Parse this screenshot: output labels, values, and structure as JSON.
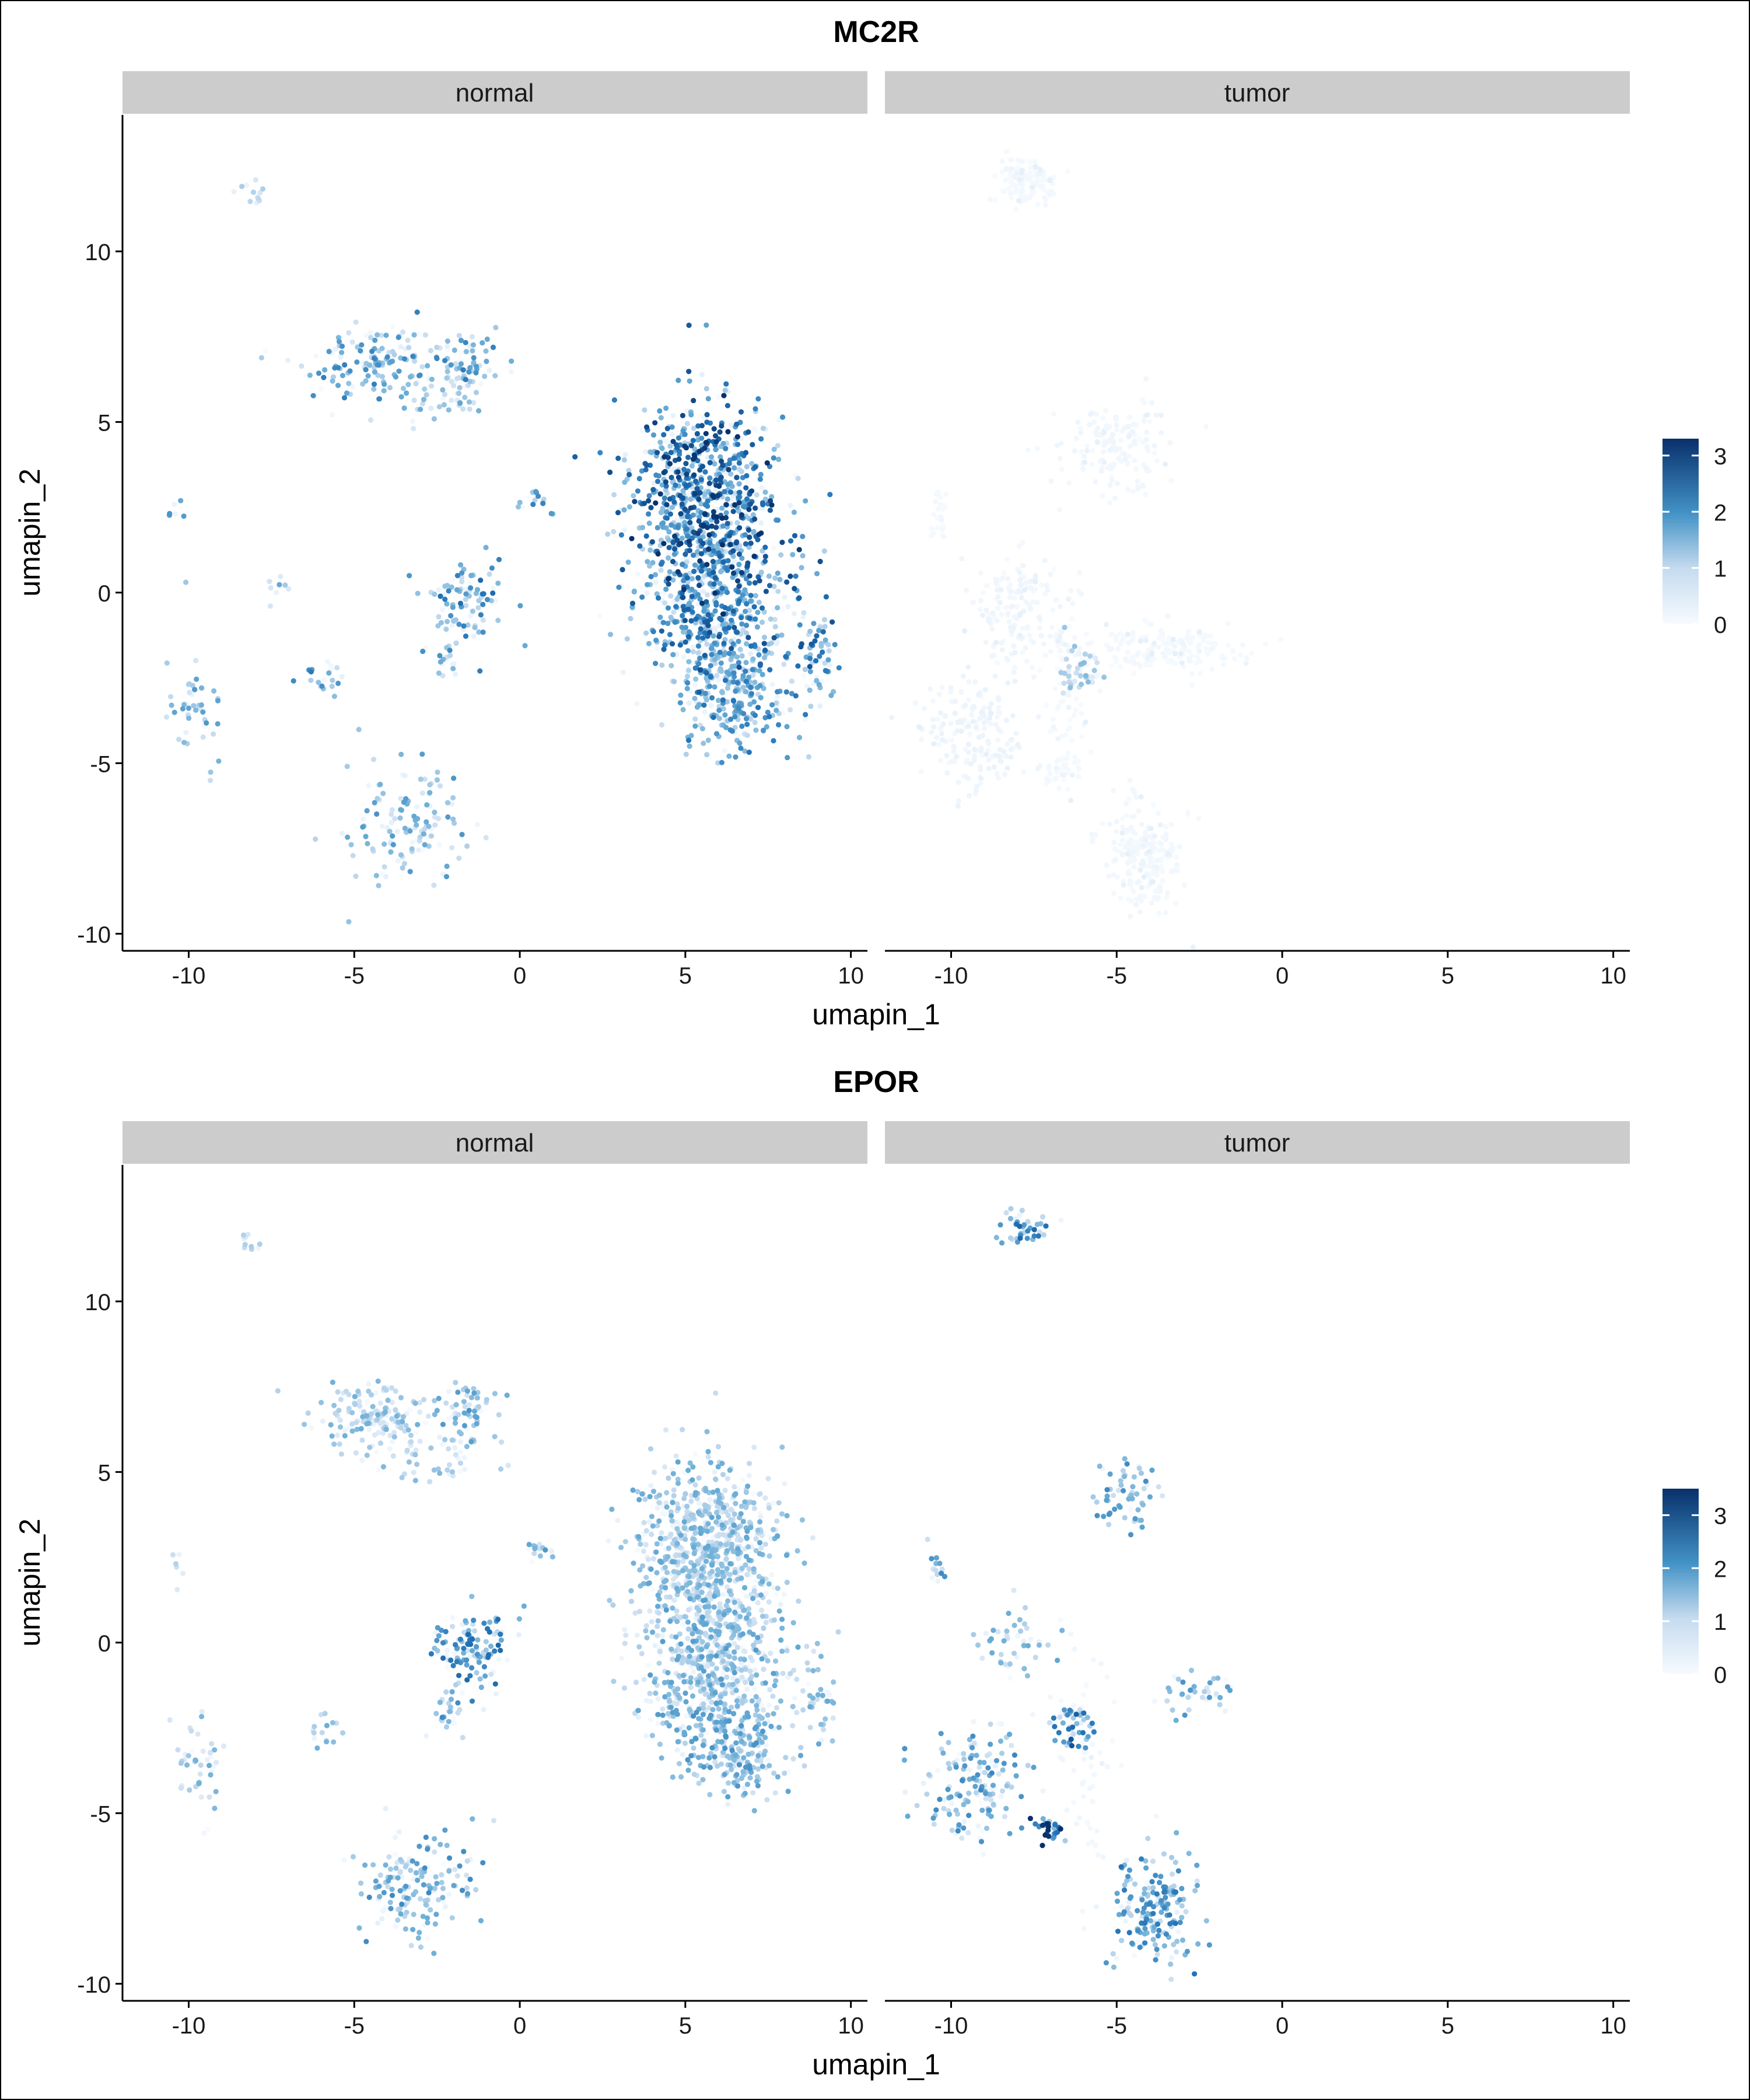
{
  "chart_data": [
    {
      "type": "scatter",
      "title": "MC2R",
      "facets": [
        "normal",
        "tumor"
      ],
      "xlabel": "umapin_1",
      "ylabel": "umapin_2",
      "xlim": [
        -12,
        10.5
      ],
      "ylim": [
        -10.5,
        14
      ],
      "xticks": [
        -10,
        -5,
        0,
        5,
        10
      ],
      "yticks": [
        -10,
        -5,
        0,
        5,
        10
      ],
      "color_scale": {
        "low": "#f7fbff",
        "high": "#08306b",
        "min": 0,
        "max": 3.3,
        "ticks": [
          0,
          1,
          2,
          3
        ]
      },
      "clusters": {
        "normal": [
          {
            "x": -8.1,
            "y": 11.8,
            "sx": 0.25,
            "sy": 0.15,
            "n": 12,
            "expr": 0.8
          },
          {
            "x": -4.3,
            "y": 6.7,
            "sx": 1.0,
            "sy": 0.5,
            "n": 150,
            "expr": 1.6
          },
          {
            "x": -1.5,
            "y": 6.8,
            "sx": 0.45,
            "sy": 0.45,
            "n": 60,
            "expr": 1.6
          },
          {
            "x": -2.5,
            "y": 5.5,
            "sx": 0.8,
            "sy": 0.4,
            "n": 40,
            "expr": 1.2
          },
          {
            "x": -10.4,
            "y": 2.5,
            "sx": 0.12,
            "sy": 0.3,
            "n": 6,
            "expr": 1.6
          },
          {
            "x": 0.5,
            "y": 2.7,
            "sx": 0.25,
            "sy": 0.2,
            "n": 15,
            "expr": 1.8
          },
          {
            "x": -1.6,
            "y": -0.3,
            "sx": 0.6,
            "sy": 0.6,
            "n": 90,
            "expr": 1.8
          },
          {
            "x": -2.2,
            "y": -2.0,
            "sx": 0.3,
            "sy": 0.4,
            "n": 20,
            "expr": 1.6
          },
          {
            "x": -7.2,
            "y": 0.2,
            "sx": 0.25,
            "sy": 0.2,
            "n": 8,
            "expr": 1.2
          },
          {
            "x": -9.8,
            "y": -3.5,
            "sx": 0.5,
            "sy": 0.8,
            "n": 45,
            "expr": 1.4
          },
          {
            "x": -5.9,
            "y": -2.4,
            "sx": 0.3,
            "sy": 0.3,
            "n": 20,
            "expr": 1.9
          },
          {
            "x": -3.4,
            "y": -6.8,
            "sx": 0.9,
            "sy": 0.9,
            "n": 130,
            "expr": 1.4
          },
          {
            "x": 5.6,
            "y": 2.8,
            "sx": 1.1,
            "sy": 1.4,
            "n": 800,
            "expr": 2.3
          },
          {
            "x": 5.8,
            "y": -0.5,
            "sx": 1.1,
            "sy": 1.2,
            "n": 550,
            "expr": 2.0
          },
          {
            "x": 6.5,
            "y": -3.0,
            "sx": 0.8,
            "sy": 0.8,
            "n": 250,
            "expr": 1.7
          },
          {
            "x": 9.0,
            "y": -1.8,
            "sx": 0.3,
            "sy": 0.8,
            "n": 60,
            "expr": 2.0
          }
        ],
        "tumor": [
          {
            "x": -7.8,
            "y": 12.1,
            "sx": 0.4,
            "sy": 0.3,
            "n": 120,
            "expr": 0.05
          },
          {
            "x": -5.0,
            "y": 4.3,
            "sx": 0.8,
            "sy": 0.7,
            "n": 150,
            "expr": 0.1
          },
          {
            "x": -10.4,
            "y": 2.3,
            "sx": 0.15,
            "sy": 0.4,
            "n": 25,
            "expr": 0.05
          },
          {
            "x": -8.0,
            "y": -0.5,
            "sx": 0.6,
            "sy": 0.8,
            "n": 150,
            "expr": 0.12
          },
          {
            "x": -6.1,
            "y": -2.4,
            "sx": 0.3,
            "sy": 0.4,
            "n": 50,
            "expr": 1.0
          },
          {
            "x": -3.5,
            "y": -1.6,
            "sx": 1.2,
            "sy": 0.35,
            "n": 170,
            "expr": 0.05
          },
          {
            "x": -9.3,
            "y": -4.2,
            "sx": 0.8,
            "sy": 0.8,
            "n": 170,
            "expr": 0.15
          },
          {
            "x": -6.8,
            "y": -5.3,
            "sx": 0.3,
            "sy": 0.25,
            "n": 30,
            "expr": 0.05
          },
          {
            "x": -4.2,
            "y": -7.8,
            "sx": 0.6,
            "sy": 0.9,
            "n": 220,
            "expr": 0.08
          },
          {
            "x": -6.5,
            "y": -2.6,
            "sx": 0.35,
            "sy": 1.5,
            "n": 80,
            "expr": 0.05
          }
        ]
      }
    },
    {
      "type": "scatter",
      "title": "EPOR",
      "facets": [
        "normal",
        "tumor"
      ],
      "xlabel": "umapin_1",
      "ylabel": "umapin_2",
      "xlim": [
        -12,
        10.5
      ],
      "ylim": [
        -10.5,
        14
      ],
      "xticks": [
        -10,
        -5,
        0,
        5,
        10
      ],
      "yticks": [
        -10,
        -5,
        0,
        5,
        10
      ],
      "color_scale": {
        "low": "#f7fbff",
        "high": "#08306b",
        "min": 0,
        "max": 3.5,
        "ticks": [
          0,
          1,
          2,
          3
        ]
      },
      "clusters": {
        "normal": [
          {
            "x": -8.1,
            "y": 11.8,
            "sx": 0.25,
            "sy": 0.15,
            "n": 10,
            "expr": 0.8
          },
          {
            "x": -4.3,
            "y": 6.6,
            "sx": 1.0,
            "sy": 0.5,
            "n": 160,
            "expr": 1.2
          },
          {
            "x": -1.5,
            "y": 6.8,
            "sx": 0.45,
            "sy": 0.45,
            "n": 60,
            "expr": 1.5
          },
          {
            "x": -2.6,
            "y": 5.4,
            "sx": 0.8,
            "sy": 0.4,
            "n": 40,
            "expr": 1.1
          },
          {
            "x": -10.4,
            "y": 2.5,
            "sx": 0.12,
            "sy": 0.3,
            "n": 6,
            "expr": 1.0
          },
          {
            "x": 0.5,
            "y": 2.7,
            "sx": 0.25,
            "sy": 0.2,
            "n": 15,
            "expr": 1.6
          },
          {
            "x": -1.5,
            "y": -0.2,
            "sx": 0.6,
            "sy": 0.6,
            "n": 120,
            "expr": 1.9
          },
          {
            "x": -2.2,
            "y": -2.0,
            "sx": 0.3,
            "sy": 0.4,
            "n": 25,
            "expr": 1.6
          },
          {
            "x": -9.8,
            "y": -3.6,
            "sx": 0.5,
            "sy": 0.8,
            "n": 45,
            "expr": 1.2
          },
          {
            "x": -5.9,
            "y": -2.4,
            "sx": 0.3,
            "sy": 0.3,
            "n": 15,
            "expr": 1.2
          },
          {
            "x": -3.2,
            "y": -7.2,
            "sx": 0.9,
            "sy": 0.8,
            "n": 160,
            "expr": 1.6
          },
          {
            "x": 5.6,
            "y": 2.6,
            "sx": 1.1,
            "sy": 1.4,
            "n": 800,
            "expr": 1.3
          },
          {
            "x": 5.8,
            "y": -0.8,
            "sx": 1.1,
            "sy": 1.2,
            "n": 550,
            "expr": 1.4
          },
          {
            "x": 6.5,
            "y": -3.2,
            "sx": 0.8,
            "sy": 0.7,
            "n": 200,
            "expr": 1.5
          },
          {
            "x": 9.0,
            "y": -1.8,
            "sx": 0.3,
            "sy": 0.6,
            "n": 35,
            "expr": 1.3
          }
        ],
        "tumor": [
          {
            "x": -7.8,
            "y": 12.1,
            "sx": 0.4,
            "sy": 0.3,
            "n": 40,
            "expr": 1.9
          },
          {
            "x": -4.7,
            "y": 4.3,
            "sx": 0.5,
            "sy": 0.5,
            "n": 60,
            "expr": 1.6
          },
          {
            "x": -10.4,
            "y": 2.3,
            "sx": 0.15,
            "sy": 0.4,
            "n": 15,
            "expr": 1.7
          },
          {
            "x": -8.2,
            "y": 0.0,
            "sx": 0.6,
            "sy": 0.5,
            "n": 45,
            "expr": 1.3
          },
          {
            "x": -6.3,
            "y": -2.5,
            "sx": 0.3,
            "sy": 0.4,
            "n": 45,
            "expr": 2.1
          },
          {
            "x": -2.7,
            "y": -1.5,
            "sx": 0.6,
            "sy": 0.3,
            "n": 40,
            "expr": 1.5
          },
          {
            "x": -9.3,
            "y": -4.2,
            "sx": 0.8,
            "sy": 0.8,
            "n": 160,
            "expr": 1.6
          },
          {
            "x": -7.0,
            "y": -5.5,
            "sx": 0.25,
            "sy": 0.15,
            "n": 35,
            "expr": 3.0
          },
          {
            "x": -3.8,
            "y": -7.8,
            "sx": 0.6,
            "sy": 0.9,
            "n": 190,
            "expr": 1.8
          },
          {
            "x": -6.0,
            "y": -3.0,
            "sx": 0.5,
            "sy": 1.8,
            "n": 60,
            "expr": 0.1
          }
        ]
      }
    }
  ]
}
